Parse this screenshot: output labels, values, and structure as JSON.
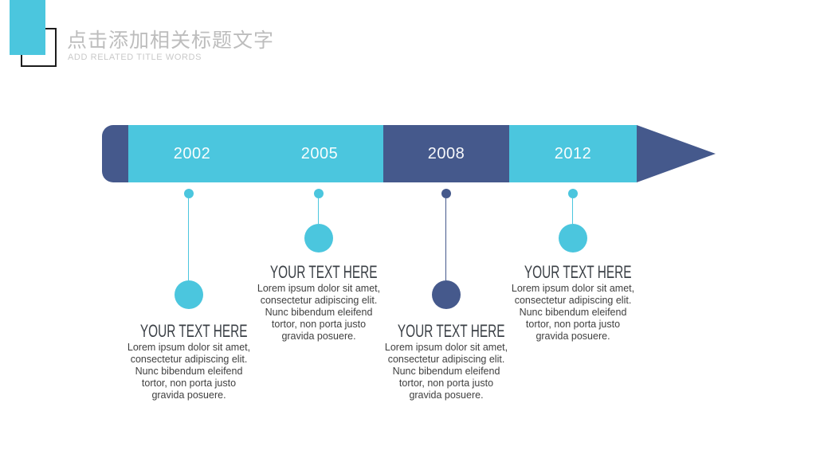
{
  "colors": {
    "cyan": "#4bc6de",
    "navy": "#45598c",
    "title_gray": "#bdbdbd",
    "subtitle_gray": "#c9c9c9",
    "heading_text": "#3b4046",
    "body_text": "#3f3f3f"
  },
  "header": {
    "title": "点击添加相关标题文字",
    "subtitle": "ADD RELATED TITLE WORDS"
  },
  "timeline": {
    "years": [
      {
        "label": "2002",
        "color": "cyan"
      },
      {
        "label": "2005",
        "color": "cyan"
      },
      {
        "label": "2008",
        "color": "navy"
      },
      {
        "label": "2012",
        "color": "cyan"
      }
    ]
  },
  "columns": [
    {
      "year": "2002",
      "accent": "cyan",
      "heading": "YOUR TEXT HERE",
      "body_lines": [
        "Lorem ipsum dolor sit amet,",
        "consectetur adipiscing elit.",
        "Nunc bibendum eleifend",
        "tortor, non porta justo",
        "gravida posuere."
      ]
    },
    {
      "year": "2005",
      "accent": "cyan",
      "heading": "YOUR TEXT HERE",
      "body_lines": [
        "Lorem ipsum dolor sit amet,",
        "consectetur adipiscing elit.",
        "Nunc bibendum eleifend",
        "tortor, non porta justo",
        "gravida posuere."
      ]
    },
    {
      "year": "2008",
      "accent": "navy",
      "heading": "YOUR TEXT HERE",
      "body_lines": [
        "Lorem ipsum dolor sit amet,",
        "consectetur adipiscing elit.",
        "Nunc bibendum eleifend",
        "tortor, non porta justo",
        "gravida posuere."
      ]
    },
    {
      "year": "2012",
      "accent": "cyan",
      "heading": "YOUR TEXT HERE",
      "body_lines": [
        "Lorem ipsum dolor sit amet,",
        "consectetur adipiscing elit.",
        "Nunc bibendum eleifend",
        "tortor, non porta justo",
        "gravida posuere."
      ]
    }
  ]
}
